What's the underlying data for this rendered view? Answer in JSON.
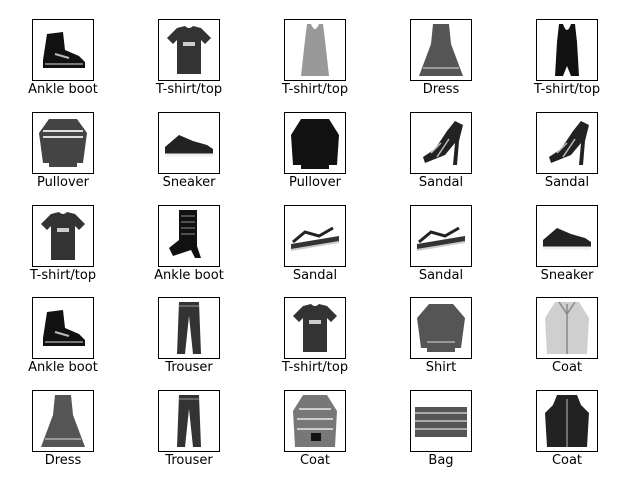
{
  "items": [
    {
      "label": "Ankle boot",
      "icon": "ankle-boot-icon"
    },
    {
      "label": "T-shirt/top",
      "icon": "tshirt-icon"
    },
    {
      "label": "T-shirt/top",
      "icon": "tanktop-icon"
    },
    {
      "label": "Dress",
      "icon": "dress-icon"
    },
    {
      "label": "T-shirt/top",
      "icon": "tank-dark-icon"
    },
    {
      "label": "Pullover",
      "icon": "pullover-striped-icon"
    },
    {
      "label": "Sneaker",
      "icon": "sneaker-icon"
    },
    {
      "label": "Pullover",
      "icon": "pullover-icon"
    },
    {
      "label": "Sandal",
      "icon": "heel-sandal-icon"
    },
    {
      "label": "Sandal",
      "icon": "heel-sandal-icon"
    },
    {
      "label": "T-shirt/top",
      "icon": "tshirt-icon"
    },
    {
      "label": "Ankle boot",
      "icon": "ankle-boot-laced-icon"
    },
    {
      "label": "Sandal",
      "icon": "flat-sandal-icon"
    },
    {
      "label": "Sandal",
      "icon": "flat-sandal-icon"
    },
    {
      "label": "Sneaker",
      "icon": "sneaker-icon"
    },
    {
      "label": "Ankle boot",
      "icon": "ankle-boot-icon"
    },
    {
      "label": "Trouser",
      "icon": "trouser-icon"
    },
    {
      "label": "T-shirt/top",
      "icon": "tshirt-icon"
    },
    {
      "label": "Shirt",
      "icon": "shirt-icon"
    },
    {
      "label": "Coat",
      "icon": "coat-icon"
    },
    {
      "label": "Dress",
      "icon": "dress-icon"
    },
    {
      "label": "Trouser",
      "icon": "trouser-icon"
    },
    {
      "label": "Coat",
      "icon": "coat-patterned-icon"
    },
    {
      "label": "Bag",
      "icon": "bag-icon"
    },
    {
      "label": "Coat",
      "icon": "coat-hooded-icon"
    }
  ]
}
